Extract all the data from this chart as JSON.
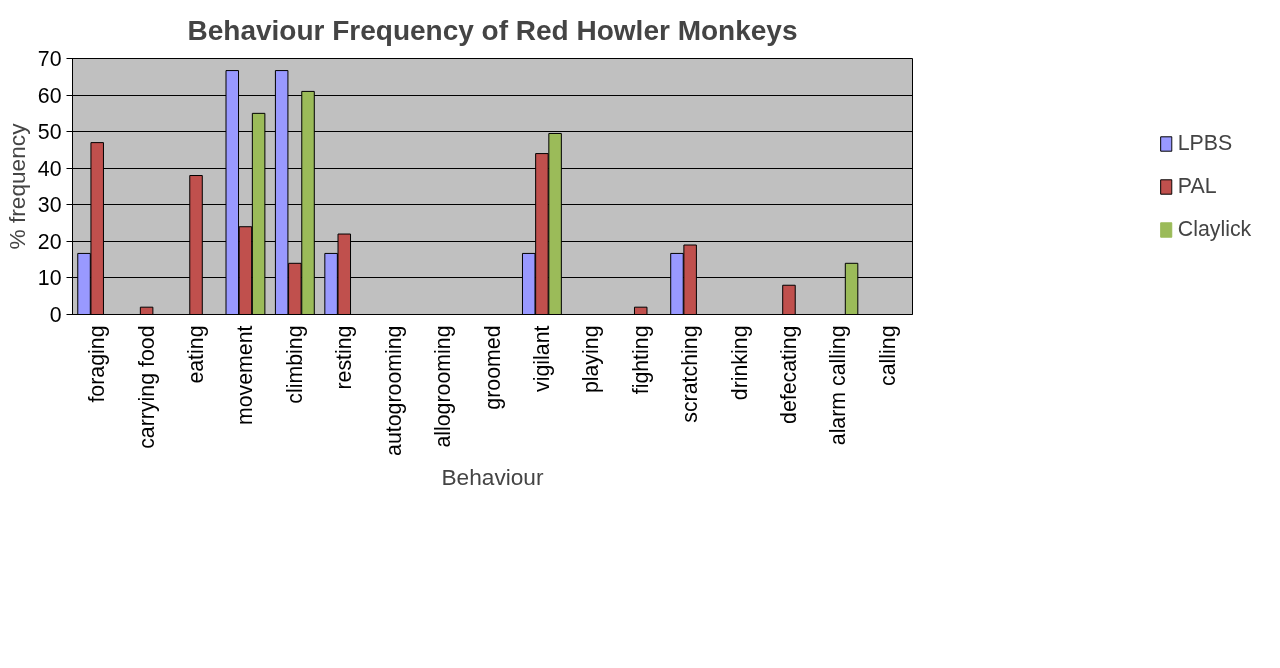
{
  "chart_data": {
    "type": "bar",
    "title": "Behaviour Frequency of Red Howler Monkeys",
    "xlabel": "Behaviour",
    "ylabel": "% frequency",
    "categories": [
      "foraging",
      "carrying food",
      "eating",
      "movement",
      "climbing",
      "resting",
      "autogrooming",
      "allogrooming",
      "groomed",
      "vigilant",
      "playing",
      "fighting",
      "scratching",
      "drinking",
      "defecating",
      "alarm calling",
      "calling"
    ],
    "series": [
      {
        "name": "LPBS",
        "color": "#9999ff",
        "values": [
          16.7,
          0,
          0,
          66.7,
          66.7,
          16.7,
          0,
          0,
          0,
          16.7,
          0,
          0,
          16.7,
          0,
          0,
          0,
          0
        ]
      },
      {
        "name": "PAL",
        "color": "#c0504d",
        "values": [
          47,
          2,
          38,
          24,
          14,
          22,
          0,
          0,
          0,
          44,
          0,
          2,
          19,
          0,
          8,
          0,
          0
        ]
      },
      {
        "name": "Claylick",
        "color": "#9bbb59",
        "values": [
          0,
          0,
          0,
          55,
          61,
          0,
          0,
          0,
          0,
          49.5,
          0,
          0,
          0,
          0,
          0,
          14,
          0
        ]
      }
    ],
    "ylim": [
      0,
      70
    ],
    "yticks": [
      0,
      10,
      20,
      30,
      40,
      50,
      60,
      70
    ],
    "grid": "y",
    "legend": "right"
  }
}
